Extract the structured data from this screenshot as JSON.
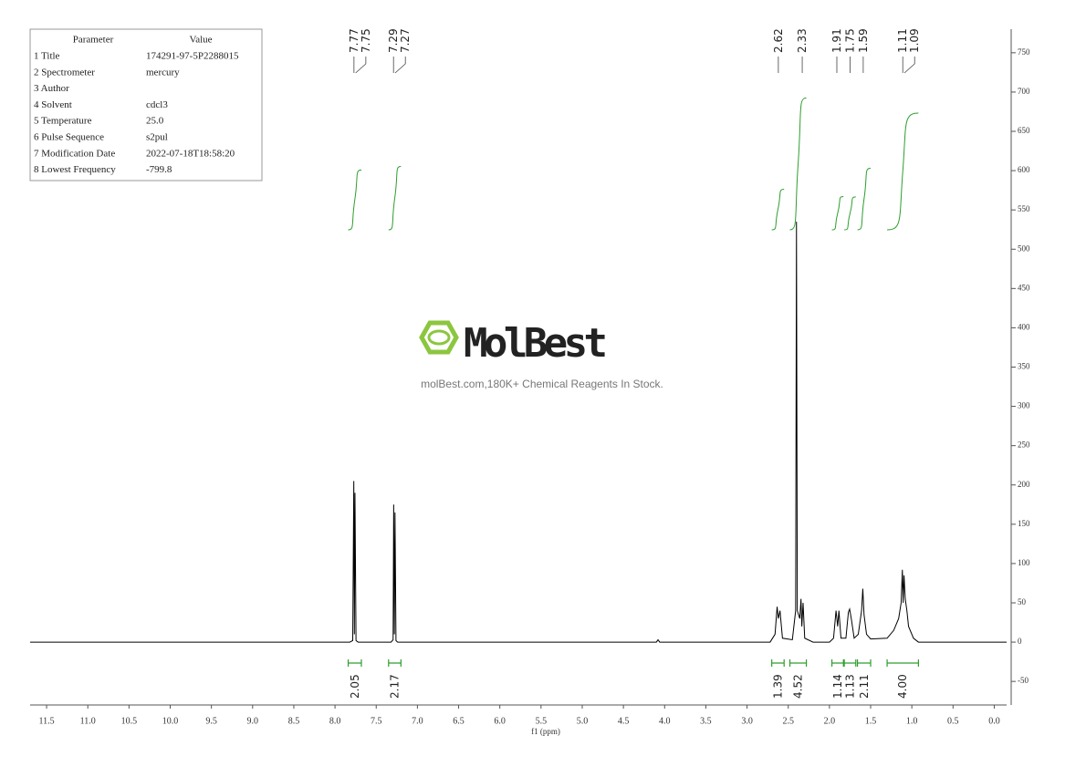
{
  "chart_data": {
    "type": "line",
    "x_label": "f1 (ppm)",
    "color": "#000000",
    "x": [
      11.7,
      7.82,
      7.785,
      7.772,
      7.765,
      7.758,
      7.745,
      7.72,
      7.32,
      7.295,
      7.288,
      7.28,
      7.272,
      7.26,
      7.24,
      4.1,
      4.08,
      4.06,
      2.72,
      2.66,
      2.635,
      2.62,
      2.6,
      2.57,
      2.45,
      2.41,
      2.4,
      2.39,
      2.36,
      2.345,
      2.335,
      2.32,
      2.3,
      2.2,
      2.0,
      1.95,
      1.92,
      1.9,
      1.885,
      1.86,
      1.8,
      1.77,
      1.755,
      1.735,
      1.7,
      1.65,
      1.61,
      1.595,
      1.58,
      1.55,
      1.5,
      1.3,
      1.22,
      1.16,
      1.13,
      1.115,
      1.105,
      1.095,
      1.08,
      1.06,
      1.04,
      0.98,
      0.92,
      -0.15
    ],
    "values": [
      0,
      0,
      2,
      205,
      10,
      190,
      2,
      0,
      0,
      3,
      175,
      10,
      165,
      2,
      0,
      0,
      3,
      0,
      0,
      10,
      45,
      30,
      40,
      5,
      3,
      40,
      535,
      40,
      30,
      55,
      20,
      50,
      5,
      0,
      0,
      5,
      40,
      20,
      40,
      5,
      5,
      38,
      42,
      30,
      5,
      10,
      40,
      68,
      35,
      10,
      4,
      5,
      15,
      30,
      50,
      92,
      50,
      85,
      55,
      40,
      20,
      5,
      0,
      0
    ],
    "xlim": [
      11.7,
      -0.15
    ],
    "ylim": [
      -80,
      780
    ],
    "xticks": [
      11.5,
      {
        "value": 11,
        "label": "11.0"
      },
      10.5,
      {
        "value": 10,
        "label": "10.0"
      },
      9.5,
      {
        "value": 9,
        "label": "9.0"
      },
      8.5,
      {
        "value": 8,
        "label": "8.0"
      },
      7.5,
      {
        "value": 7,
        "label": "7.0"
      },
      6.5,
      {
        "value": 6,
        "label": "6.0"
      },
      5.5,
      {
        "value": 5,
        "label": "5.0"
      },
      4.5,
      {
        "value": 4,
        "label": "4.0"
      },
      3.5,
      {
        "value": 3,
        "label": "3.0"
      },
      2.5,
      {
        "value": 2,
        "label": "2.0"
      },
      1.5,
      {
        "value": 1,
        "label": "1.0"
      },
      0.5,
      {
        "value": 0,
        "label": "0.0"
      }
    ],
    "yticks": [
      -50,
      0,
      50,
      100,
      150,
      200,
      250,
      300,
      350,
      400,
      450,
      500,
      550,
      600,
      650,
      700,
      750
    ],
    "peaks": [
      7.77,
      7.75,
      7.29,
      7.27,
      2.62,
      2.33,
      1.91,
      1.75,
      1.59,
      1.11,
      1.09
    ],
    "integrals": {
      "color": "#2e9e2e",
      "ranges": [
        [
          7.84,
          7.68
        ],
        [
          7.35,
          7.2
        ],
        [
          2.7,
          2.55
        ],
        [
          2.48,
          2.28
        ],
        [
          1.97,
          1.83
        ],
        [
          1.82,
          1.68
        ],
        [
          1.66,
          1.5
        ],
        [
          1.3,
          0.92
        ]
      ],
      "values": [
        2.05,
        2.17,
        1.39,
        4.52,
        1.14,
        1.13,
        2.11,
        4
      ],
      "value_labels": [
        "2.05",
        "2.17",
        "1.39",
        "4.52",
        "1.14",
        "1.13",
        "2.11",
        "4.00"
      ]
    }
  },
  "parameters": {
    "header": [
      "Parameter",
      "Value"
    ],
    "rows": [
      [
        "1 Title",
        "174291-97-5P2288015"
      ],
      [
        "2 Spectrometer",
        "mercury"
      ],
      [
        "3 Author",
        ""
      ],
      [
        "4 Solvent",
        "cdcl3"
      ],
      [
        "5 Temperature",
        "25.0"
      ],
      [
        "6 Pulse Sequence",
        "s2pul"
      ],
      [
        "7 Modification Date",
        "2022-07-18T18:58:20"
      ],
      [
        "8 Lowest Frequency",
        "-799.8"
      ]
    ]
  },
  "watermark": {
    "logo": "MolBest",
    "text": "molBest.com,180K+ Chemical Reagents In Stock."
  }
}
